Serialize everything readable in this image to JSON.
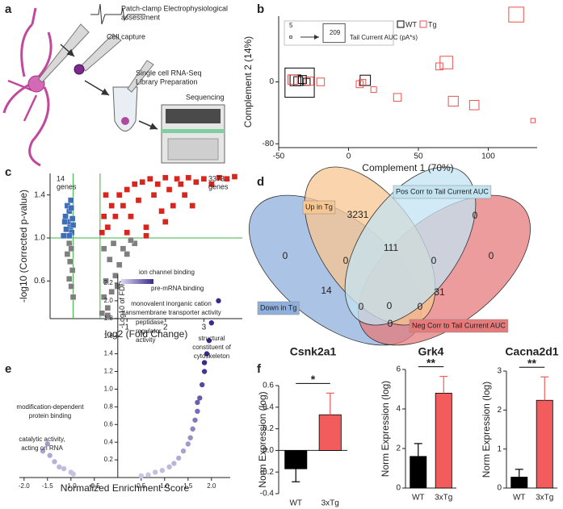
{
  "panel_labels": [
    "a",
    "b",
    "c",
    "d",
    "e",
    "f"
  ],
  "schematic": {
    "steps": [
      [
        "Patch-clamp Electrophysiological",
        "assessment"
      ],
      [
        "Cell capture"
      ],
      [
        "Single cell RNA-Seq",
        "Library Preparation"
      ],
      [
        "Sequencing"
      ]
    ]
  },
  "venn": {
    "sets": [
      "Down in Tg",
      "Neg Corr to Tail Current AUC",
      "Up in Tg",
      "Pos Corr to Tail Current AUC"
    ],
    "set_colors": [
      "#8fb0dc",
      "#e57b7b",
      "#f8c690",
      "#c3e3f1"
    ],
    "regions": [
      3231,
      0,
      111,
      0,
      0,
      0,
      0,
      14,
      0,
      31,
      0,
      0,
      0
    ]
  },
  "chart_data": [
    {
      "type": "scatter",
      "marker": "hollow-square",
      "xlabel": "Complement 1 (70%)",
      "ylabel": "Complement 2 (14%)",
      "xlim": [
        -50,
        135
      ],
      "ylim": [
        -85,
        85
      ],
      "xticks": [
        -50,
        0,
        50,
        100
      ],
      "yticks": [
        -80,
        0
      ],
      "series": [
        {
          "name": "WT",
          "color": "#000000",
          "x": [
            -38,
            -36,
            -33,
            -30,
            12,
            -35
          ],
          "values": [
            2,
            1,
            3,
            0,
            2,
            -1
          ],
          "sizes": [
            20,
            12,
            9,
            6,
            18,
            209
          ]
        },
        {
          "name": "Tg",
          "color": "#e8524f",
          "x": [
            -40,
            -28,
            -20,
            8,
            10,
            18,
            35,
            65,
            70,
            75,
            90,
            120,
            132
          ],
          "values": [
            3,
            1,
            0,
            -3,
            -1,
            -10,
            -20,
            20,
            25,
            -25,
            -30,
            87,
            -50
          ],
          "sizes": [
            14,
            10,
            8,
            6,
            5,
            3,
            8,
            6,
            30,
            16,
            14,
            45,
            1
          ]
        }
      ],
      "size_legend": {
        "values": [
          5,
          209
        ],
        "label": "Tail Current AUC (pA*s)"
      }
    },
    {
      "type": "scatter",
      "marker": "square",
      "xlabel": "log2 (Fold Change)",
      "ylabel": "-log10 (Corrected p-value)",
      "xlim": [
        -1,
        4
      ],
      "ylim": [
        0.25,
        1.6
      ],
      "xticks": [
        1,
        2,
        3
      ],
      "yticks": [
        0.6,
        {
          "value": 1,
          "label": "1.0"
        },
        1.4
      ],
      "thresholds": {
        "x": [
          -0.4,
          0.3
        ],
        "y": 1,
        "color": "#3cb043"
      },
      "annotations": [
        {
          "lines": [
            "14",
            "genes"
          ],
          "color": "#4a78c0"
        },
        {
          "lines": [
            "3373",
            "genes"
          ],
          "color": "#e0302a"
        }
      ],
      "series": [
        {
          "color": "#3e6fb6",
          "x": [
            -0.55,
            -0.5,
            -0.45,
            -0.6,
            -0.52,
            -0.42,
            -0.48,
            -0.58,
            -0.44,
            -0.65,
            -0.5,
            -0.4,
            -0.62,
            -0.46
          ],
          "values": [
            1.3,
            1.25,
            1.28,
            1.2,
            1.15,
            1.18,
            1.1,
            1.08,
            1.05,
            1.02,
            1.02,
            1.12,
            1.15,
            1.35
          ]
        },
        {
          "color": "#7f7f7f",
          "x": [
            -0.5,
            -0.45,
            -0.55,
            -0.48,
            -0.42,
            -0.5,
            -0.45,
            -0.4,
            0.35,
            0.4,
            0.5,
            0.45,
            0.6,
            0.7,
            0.55,
            0.8,
            0.9,
            1.0,
            0.65,
            1.2,
            0.4,
            0.75,
            1.1,
            0.5
          ],
          "values": [
            0.95,
            0.9,
            0.85,
            0.78,
            0.7,
            0.62,
            0.55,
            0.45,
            0.3,
            0.45,
            0.35,
            0.6,
            0.5,
            0.65,
            0.8,
            0.75,
            0.9,
            0.85,
            0.95,
            0.95,
            0.9,
            0.55,
            0.98,
            0.28
          ]
        },
        {
          "color": "#d7261e",
          "x": [
            0.35,
            0.4,
            0.5,
            0.6,
            0.7,
            0.8,
            0.9,
            1.0,
            1.1,
            1.2,
            1.3,
            1.4,
            1.5,
            1.6,
            1.7,
            1.8,
            1.9,
            2.0,
            2.1,
            2.2,
            2.3,
            2.4,
            2.5,
            2.6,
            2.8,
            3.0,
            3.2,
            3.4,
            3.6,
            3.8,
            1.0,
            1.5,
            2.0,
            2.7,
            0.45
          ],
          "values": [
            1.05,
            1.2,
            1.1,
            1.3,
            1.2,
            1.4,
            1.3,
            1.45,
            1.2,
            1.5,
            1.35,
            1.52,
            1.1,
            1.55,
            1.4,
            1.5,
            1.25,
            1.56,
            1.45,
            1.3,
            1.55,
            1.5,
            1.4,
            1.56,
            1.52,
            1.55,
            1.5,
            1.56,
            1.55,
            1.57,
            1.05,
            1.02,
            1.15,
            1.3,
            1.4
          ]
        }
      ]
    },
    {
      "type": "scatter",
      "marker": "circle",
      "y_axis": "zero",
      "xlabel": "Normalized Enrichment Score",
      "ylabel": "-Log10 of FDR",
      "xlim": [
        -2.1,
        2.4
      ],
      "ylim": [
        0,
        2.3
      ],
      "xticks": [
        {
          "value": -2,
          "label": "-2.0"
        },
        -1.5,
        {
          "value": -1,
          "label": "-1.0"
        },
        -0.5,
        0.5,
        {
          "value": 1,
          "label": "1.0"
        },
        1.5,
        {
          "value": 2,
          "label": "2.0"
        }
      ],
      "yticks": [
        0.2,
        0.4,
        0.6,
        0.8,
        {
          "value": 1,
          "label": "1.0"
        },
        1.2,
        1.4,
        1.6,
        1.8,
        {
          "value": 2,
          "label": "2.0"
        },
        2.2
      ],
      "color_scale": [
        "#ddd8f0",
        "#3b2a8c"
      ],
      "x": [
        -1.6,
        -1.5,
        -1.45,
        -1.35,
        -1.25,
        -1.15,
        -1.0,
        -0.95,
        0.5,
        0.65,
        0.8,
        0.95,
        1.1,
        1.2,
        1.3,
        1.4,
        1.5,
        1.55,
        1.6,
        1.65,
        1.7,
        1.75,
        1.8,
        1.85,
        1.9,
        1.95,
        2.0,
        2.15,
        1.85,
        1.7
      ],
      "values": [
        0.3,
        0.38,
        0.25,
        0.18,
        0.12,
        0.1,
        0.06,
        0.04,
        0.02,
        0.03,
        0.06,
        0.08,
        0.12,
        0.16,
        0.22,
        0.3,
        0.38,
        0.45,
        0.55,
        0.65,
        0.75,
        0.9,
        1.05,
        1.2,
        1.4,
        1.55,
        1.75,
        2.0,
        1.3,
        0.85
      ],
      "annotations": [
        [
          "ion channel binding"
        ],
        [
          "pre-mRNA binding"
        ],
        [
          "monovalent inorganic cation",
          "transmembrane transporter activity"
        ],
        [
          "peptidase",
          "regulator",
          "activity"
        ],
        [
          "structural",
          "constituent of",
          "cytoskeleton"
        ],
        [
          "modification-dependent",
          "protein binding"
        ],
        [
          "catalytic activity,",
          "acting on RNA"
        ]
      ]
    },
    {
      "type": "bar",
      "title": "Csnk2a1",
      "ylabel": "Norm Expression (log)",
      "categories": [
        "WT",
        "3xTg"
      ],
      "values": [
        -0.17,
        0.33
      ],
      "errors": [
        0.12,
        0.2
      ],
      "colors": [
        "#000000",
        "#f25c5c"
      ],
      "ylim": [
        -0.4,
        0.6
      ],
      "yticks": [
        -0.4,
        -0.2,
        {
          "value": 0,
          "label": "0.0"
        },
        0.2,
        0.4,
        0.6
      ],
      "significance": "*"
    },
    {
      "type": "bar",
      "title": "Grk4",
      "ylabel": "Norm Expression (log)",
      "categories": [
        "WT",
        "3xTg"
      ],
      "values": [
        1.6,
        4.8
      ],
      "errors": [
        0.65,
        0.85
      ],
      "colors": [
        "#000000",
        "#f25c5c"
      ],
      "ylim": [
        0,
        6
      ],
      "yticks": [
        0,
        2,
        4,
        6
      ],
      "significance": "**"
    },
    {
      "type": "bar",
      "title": "Cacna2d1",
      "ylabel": "Norm Expression (log)",
      "categories": [
        "WT",
        "3xTg"
      ],
      "values": [
        0.28,
        2.25
      ],
      "errors": [
        0.2,
        0.6
      ],
      "colors": [
        "#000000",
        "#f25c5c"
      ],
      "ylim": [
        0,
        3
      ],
      "yticks": [
        0,
        1,
        2,
        3
      ],
      "significance": "**"
    }
  ]
}
